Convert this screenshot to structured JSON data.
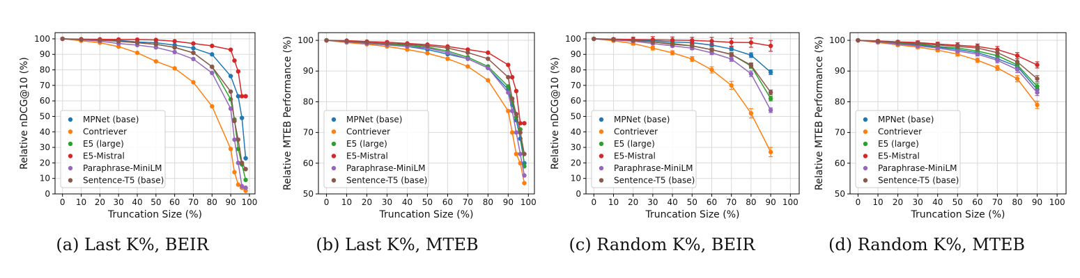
{
  "chart_data": [
    {
      "type": "line",
      "caption": "(a) Last K%, BEIR",
      "xlabel": "Truncation Size (%)",
      "ylabel": "Relative nDCG@10 (%)",
      "xlim": [
        -4,
        103
      ],
      "ylim": [
        0,
        104
      ],
      "xticks": [
        0,
        10,
        20,
        30,
        40,
        50,
        60,
        70,
        80,
        90,
        100
      ],
      "yticks": [
        0,
        10,
        20,
        30,
        40,
        50,
        60,
        70,
        80,
        90,
        100
      ],
      "grid": true,
      "legend": "lower-left",
      "error_bars": false,
      "series": [
        {
          "name": "MPNet (base)",
          "color": "#1f77b4",
          "x": [
            0,
            10,
            20,
            30,
            40,
            50,
            60,
            70,
            80,
            90,
            94,
            96,
            98
          ],
          "y": [
            100,
            99.6,
            99.4,
            99,
            98,
            97.5,
            96,
            94,
            90,
            76,
            63,
            49,
            23
          ]
        },
        {
          "name": "Contriever",
          "color": "#ff7f0e",
          "x": [
            0,
            10,
            20,
            30,
            40,
            50,
            60,
            70,
            80,
            90,
            92,
            94,
            96,
            98
          ],
          "y": [
            100,
            98.8,
            97.5,
            95,
            91,
            85.5,
            81,
            72,
            56.5,
            29,
            14,
            6,
            4,
            2
          ]
        },
        {
          "name": "E5 (large)",
          "color": "#2ca02c",
          "x": [
            0,
            10,
            20,
            30,
            40,
            50,
            60,
            70,
            80,
            90,
            92,
            94,
            96,
            98
          ],
          "y": [
            100,
            99.5,
            99.2,
            98.5,
            97.5,
            96.5,
            94.5,
            91,
            82,
            61,
            48,
            29,
            19,
            9
          ]
        },
        {
          "name": "E5-Mistral",
          "color": "#d62728",
          "x": [
            0,
            10,
            20,
            30,
            40,
            50,
            60,
            70,
            80,
            90,
            92,
            94,
            96,
            98
          ],
          "y": [
            100,
            99.8,
            99.7,
            99.6,
            99.5,
            99.3,
            98.5,
            97,
            95.5,
            93,
            86,
            79,
            63,
            63
          ]
        },
        {
          "name": "Paraphrase-MiniLM",
          "color": "#9467bd",
          "x": [
            0,
            10,
            20,
            30,
            40,
            50,
            60,
            70,
            80,
            90,
            92,
            94,
            96,
            98
          ],
          "y": [
            100,
            99.4,
            98.5,
            97,
            96,
            94.5,
            91.5,
            87,
            78,
            55,
            35,
            20,
            5,
            4
          ]
        },
        {
          "name": "Sentence-T5 (base)",
          "color": "#8c564b",
          "x": [
            0,
            10,
            20,
            30,
            40,
            50,
            60,
            70,
            80,
            90,
            92,
            94,
            96,
            98
          ],
          "y": [
            100,
            99.6,
            99.2,
            98.4,
            97.5,
            96.5,
            94.5,
            91,
            82,
            66,
            47,
            35,
            20,
            16
          ]
        }
      ]
    },
    {
      "type": "line",
      "caption": "(b) Last K%, MTEB",
      "xlabel": "Truncation Size (%)",
      "ylabel": "Relative MTEB Performance (%)",
      "xlim": [
        -4,
        103
      ],
      "ylim": [
        50,
        102.5
      ],
      "xticks": [
        0,
        10,
        20,
        30,
        40,
        50,
        60,
        70,
        80,
        90,
        100
      ],
      "yticks": [
        50,
        60,
        70,
        80,
        90,
        100
      ],
      "grid": true,
      "legend": "lower-left",
      "error_bars": false,
      "series": [
        {
          "name": "MPNet (base)",
          "color": "#1f77b4",
          "x": [
            0,
            10,
            20,
            30,
            40,
            50,
            60,
            70,
            80,
            90,
            92,
            94,
            96,
            98
          ],
          "y": [
            100,
            99.6,
            99,
            98.5,
            98,
            97,
            95.5,
            94,
            91,
            84,
            79,
            74,
            68,
            60
          ]
        },
        {
          "name": "Contriever",
          "color": "#ff7f0e",
          "x": [
            0,
            10,
            20,
            30,
            40,
            50,
            60,
            70,
            80,
            90,
            92,
            94,
            96,
            98
          ],
          "y": [
            100,
            99.3,
            98.7,
            98,
            97,
            95.8,
            94,
            91.5,
            87,
            77,
            70,
            63,
            60,
            53.5
          ]
        },
        {
          "name": "E5 (large)",
          "color": "#2ca02c",
          "x": [
            0,
            10,
            20,
            30,
            40,
            50,
            60,
            70,
            80,
            90,
            92,
            94,
            96,
            98
          ],
          "y": [
            100,
            99.6,
            99.2,
            98.8,
            98.4,
            97.8,
            96.5,
            94.5,
            91.5,
            85,
            80,
            75,
            71,
            59
          ]
        },
        {
          "name": "E5-Mistral",
          "color": "#d62728",
          "x": [
            0,
            10,
            20,
            30,
            40,
            50,
            60,
            70,
            80,
            90,
            92,
            94,
            96,
            98
          ],
          "y": [
            100,
            99.9,
            99.6,
            99.4,
            99,
            98.6,
            98,
            97,
            96,
            92,
            88,
            83.5,
            73,
            73
          ]
        },
        {
          "name": "Paraphrase-MiniLM",
          "color": "#9467bd",
          "x": [
            0,
            10,
            20,
            30,
            40,
            50,
            60,
            70,
            80,
            90,
            92,
            94,
            96,
            98
          ],
          "y": [
            100,
            99.5,
            99,
            98.5,
            98,
            97.5,
            96,
            94,
            91,
            83,
            77,
            70,
            63,
            56
          ]
        },
        {
          "name": "Sentence-T5 (base)",
          "color": "#8c564b",
          "x": [
            0,
            10,
            20,
            30,
            40,
            50,
            60,
            70,
            80,
            90,
            92,
            94,
            96,
            98
          ],
          "y": [
            100,
            99.7,
            99.3,
            99,
            98.7,
            98.2,
            97.5,
            96,
            94,
            88,
            81,
            76,
            70,
            63
          ]
        }
      ]
    },
    {
      "type": "line",
      "caption": "(c) Random K%, BEIR",
      "xlabel": "Truncation Size (%)",
      "ylabel": "Relative nDCG@10 (%)",
      "xlim": [
        -4,
        104.5
      ],
      "ylim": [
        0,
        104
      ],
      "xticks": [
        0,
        10,
        20,
        30,
        40,
        50,
        60,
        70,
        80,
        90,
        100
      ],
      "yticks": [
        0,
        10,
        20,
        30,
        40,
        50,
        60,
        70,
        80,
        90,
        100
      ],
      "grid": true,
      "legend": "lower-left",
      "error_bars": true,
      "series": [
        {
          "name": "MPNet (base)",
          "color": "#1f77b4",
          "x": [
            0,
            10,
            20,
            30,
            40,
            50,
            60,
            70,
            80,
            90
          ],
          "y": [
            100,
            99.7,
            99.3,
            98.8,
            98,
            97.5,
            96,
            93.5,
            89.5,
            78.5
          ],
          "err": [
            0,
            0.3,
            0.4,
            0.5,
            0.6,
            0.8,
            1,
            1.2,
            1.5,
            1.5
          ]
        },
        {
          "name": "Contriever",
          "color": "#ff7f0e",
          "x": [
            0,
            10,
            20,
            30,
            40,
            50,
            60,
            70,
            80,
            90
          ],
          "y": [
            100,
            98.8,
            97,
            94,
            91,
            87,
            80,
            70,
            52,
            27
          ],
          "err": [
            0,
            0.5,
            1,
            1.2,
            1.3,
            1.5,
            2,
            2.5,
            3,
            3
          ]
        },
        {
          "name": "E5 (large)",
          "color": "#2ca02c",
          "x": [
            0,
            10,
            20,
            30,
            40,
            50,
            60,
            70,
            80,
            90
          ],
          "y": [
            100,
            99.5,
            99,
            98,
            97,
            95.5,
            93,
            90,
            82.5,
            61.5
          ],
          "err": [
            0,
            0.3,
            0.4,
            0.5,
            0.6,
            0.8,
            1,
            1.2,
            1.5,
            1.5
          ]
        },
        {
          "name": "E5-Mistral",
          "color": "#d62728",
          "x": [
            0,
            10,
            20,
            30,
            40,
            50,
            60,
            70,
            80,
            90
          ],
          "y": [
            100,
            99.8,
            99.6,
            99.4,
            99.2,
            99,
            98.5,
            97.8,
            97.6,
            95.5
          ],
          "err": [
            0,
            0.8,
            1.5,
            2,
            2,
            2,
            2.5,
            2.5,
            3,
            3.5
          ]
        },
        {
          "name": "Paraphrase-MiniLM",
          "color": "#9467bd",
          "x": [
            0,
            10,
            20,
            30,
            40,
            50,
            60,
            70,
            80,
            90
          ],
          "y": [
            100,
            99.3,
            98.5,
            97,
            95.5,
            94,
            91,
            87,
            77.5,
            54
          ],
          "err": [
            0,
            0.4,
            0.5,
            0.6,
            0.8,
            1,
            1.2,
            1.5,
            1.8,
            1.5
          ]
        },
        {
          "name": "Sentence-T5 (base)",
          "color": "#8c564b",
          "x": [
            0,
            10,
            20,
            30,
            40,
            50,
            60,
            70,
            80,
            90
          ],
          "y": [
            100,
            99.6,
            99,
            98,
            96.5,
            95.5,
            93,
            90,
            83,
            65.5
          ],
          "err": [
            0,
            0.3,
            0.4,
            0.5,
            0.6,
            0.8,
            1,
            1.2,
            1.5,
            1.5
          ]
        }
      ]
    },
    {
      "type": "line",
      "caption": "(d) Random K%, MTEB",
      "xlabel": "Truncation Size (%)",
      "ylabel": "Relative MTEB Performance (%)",
      "xlim": [
        -4,
        104.5
      ],
      "ylim": [
        50,
        102.5
      ],
      "xticks": [
        0,
        10,
        20,
        30,
        40,
        50,
        60,
        70,
        80,
        90,
        100
      ],
      "yticks": [
        50,
        60,
        70,
        80,
        90,
        100
      ],
      "grid": true,
      "legend": "lower-left",
      "error_bars": true,
      "series": [
        {
          "name": "MPNet (base)",
          "color": "#1f77b4",
          "x": [
            0,
            10,
            20,
            30,
            40,
            50,
            60,
            70,
            80,
            90
          ],
          "y": [
            100,
            99.6,
            99,
            98.5,
            97.8,
            97,
            96,
            94,
            91.5,
            84
          ],
          "err": [
            0,
            0.3,
            0.3,
            0.4,
            0.5,
            0.5,
            0.6,
            0.8,
            1,
            1
          ]
        },
        {
          "name": "Contriever",
          "color": "#ff7f0e",
          "x": [
            0,
            10,
            20,
            30,
            40,
            50,
            60,
            70,
            80,
            90
          ],
          "y": [
            100,
            99.3,
            98.5,
            97.8,
            96.8,
            95.5,
            93.5,
            91,
            87.5,
            79
          ],
          "err": [
            0,
            0.3,
            0.4,
            0.5,
            0.5,
            0.6,
            0.7,
            0.8,
            1,
            1.2
          ]
        },
        {
          "name": "E5 (large)",
          "color": "#2ca02c",
          "x": [
            0,
            10,
            20,
            30,
            40,
            50,
            60,
            70,
            80,
            90
          ],
          "y": [
            100,
            99.6,
            99.2,
            98.8,
            98,
            97.5,
            96.5,
            95,
            92,
            85
          ],
          "err": [
            0,
            0.3,
            0.3,
            0.4,
            0.5,
            0.5,
            0.6,
            0.8,
            1,
            1
          ]
        },
        {
          "name": "E5-Mistral",
          "color": "#d62728",
          "x": [
            0,
            10,
            20,
            30,
            40,
            50,
            60,
            70,
            80,
            90
          ],
          "y": [
            100,
            99.8,
            99.5,
            99.3,
            98.8,
            98.4,
            98,
            97,
            95,
            92
          ],
          "err": [
            0,
            0.3,
            0.4,
            0.5,
            0.6,
            0.8,
            0.8,
            1,
            1,
            1
          ]
        },
        {
          "name": "Paraphrase-MiniLM",
          "color": "#9467bd",
          "x": [
            0,
            10,
            20,
            30,
            40,
            50,
            60,
            70,
            80,
            90
          ],
          "y": [
            100,
            99.5,
            98.8,
            98.2,
            97.5,
            96.5,
            95.5,
            93.5,
            90.5,
            83
          ],
          "err": [
            0,
            0.3,
            0.3,
            0.4,
            0.5,
            0.5,
            0.6,
            0.8,
            1,
            1
          ]
        },
        {
          "name": "Sentence-T5 (base)",
          "color": "#8c564b",
          "x": [
            0,
            10,
            20,
            30,
            40,
            50,
            60,
            70,
            80,
            90
          ],
          "y": [
            100,
            99.7,
            99.3,
            99,
            98.5,
            98,
            97.5,
            96,
            93,
            87.5
          ],
          "err": [
            0,
            0.3,
            0.3,
            0.4,
            0.5,
            0.5,
            0.6,
            0.8,
            1,
            1
          ]
        }
      ]
    }
  ]
}
